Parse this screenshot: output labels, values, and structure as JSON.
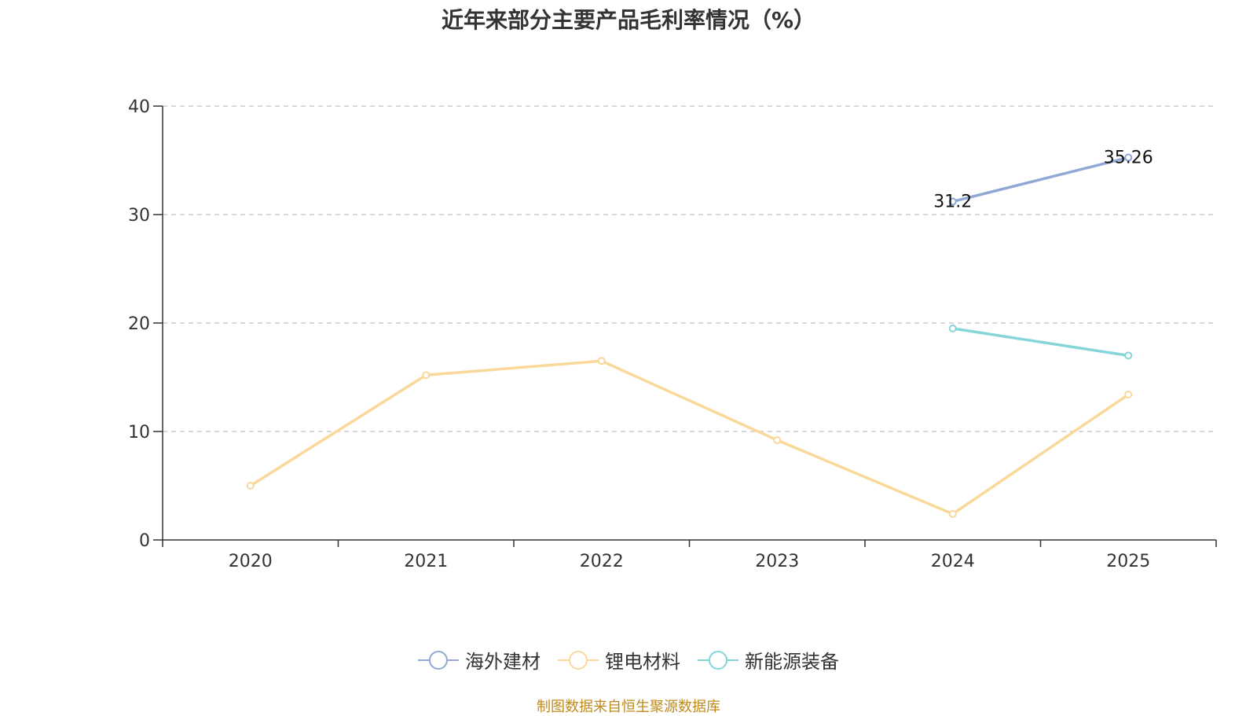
{
  "chart_data": {
    "type": "line",
    "title": "近年来部分主要产品毛利率情况（%）",
    "categories": [
      "2020",
      "2021",
      "2022",
      "2023",
      "2024",
      "2025"
    ],
    "ylim": [
      0,
      40
    ],
    "yticks": [
      0,
      10,
      20,
      30,
      40
    ],
    "grid": true,
    "legend_position": "bottom",
    "series": [
      {
        "name": "海外建材",
        "color": "#91a7d6",
        "values": [
          null,
          null,
          null,
          null,
          31.2,
          35.26
        ],
        "labels": [
          "",
          "",
          "",
          "",
          "31.2",
          "35.26"
        ]
      },
      {
        "name": "锂电材料",
        "color": "#f9d899",
        "values": [
          5.0,
          15.2,
          16.5,
          9.2,
          2.4,
          13.4
        ],
        "labels": [
          "",
          "",
          "",
          "",
          "",
          ""
        ]
      },
      {
        "name": "新能源装备",
        "color": "#86d5d8",
        "values": [
          null,
          null,
          null,
          null,
          19.5,
          17.0
        ],
        "labels": [
          "",
          "",
          "",
          "",
          "",
          ""
        ]
      }
    ]
  },
  "source_note": "制图数据来自恒生聚源数据库"
}
